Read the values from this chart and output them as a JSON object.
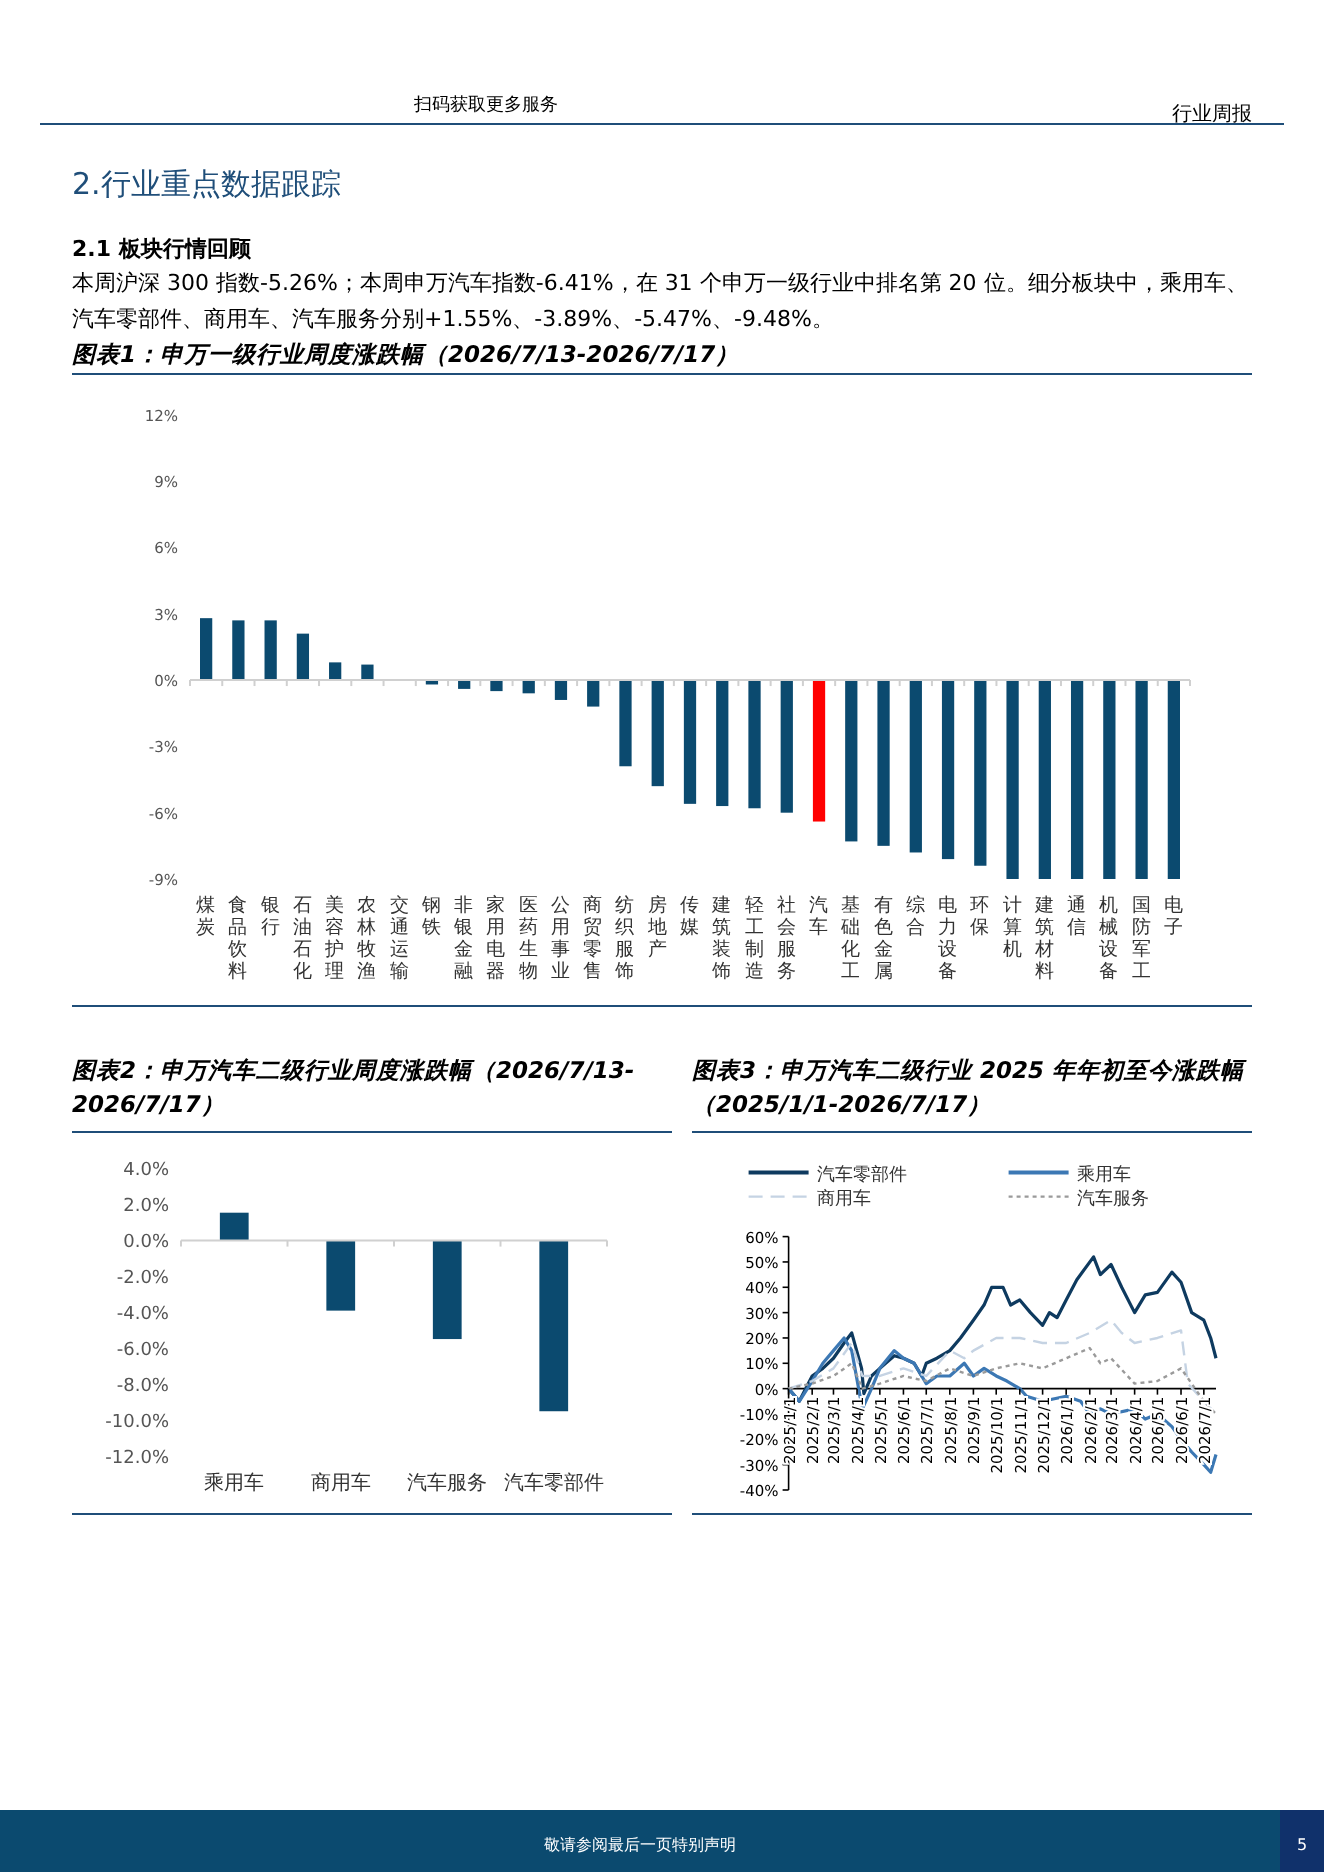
{
  "chart_data": [
    {
      "type": "bar",
      "title": "图表1：申万一级行业周度涨跌幅（2026/7/13-2026/7/17）",
      "annotations": [
        "行业周报",
        "扫码获取更多服务",
        "2.行业重点数据跟踪",
        "2.1 板块行情回顾",
        "本周沪深 300 指数-5.26%；本周申万汽车指数-6.41%，在 31 个申万一级行业中排名第 20 位。细分板块中，乘用车、汽车零部件、商用车、汽车服务分别+1.55%、-3.89%、-5.47%、-9.48%。",
        "敬请参阅最后一页特别声明",
        "5"
      ],
      "categories": [
        "煤炭",
        "食品饮料",
        "银行",
        "石油石化",
        "美容护理",
        "农林牧渔",
        "交通运输",
        "钢铁",
        "非银金融",
        "家用电器",
        "医药生物",
        "公用事业",
        "商贸零售",
        "纺织服饰",
        "房地产",
        "传媒",
        "建筑装饰",
        "轻工制造",
        "社会服务",
        "汽车",
        "基础化工",
        "有色金属",
        "综合",
        "电力设备",
        "环保",
        "计算机",
        "建筑材料",
        "通信",
        "机械设备",
        "国防军工",
        "电子"
      ],
      "values": [
        2.8,
        2.7,
        2.7,
        2.1,
        0.8,
        0.7,
        0,
        -0.2,
        -0.4,
        -0.5,
        -0.6,
        -0.9,
        -1.2,
        -3.9,
        -4.8,
        -5.6,
        -5.7,
        -5.8,
        -6,
        -6.4,
        -7.3,
        -7.5,
        -7.8,
        -8.1,
        -8.4,
        -9,
        -9,
        -9,
        -9,
        -9,
        -9
      ],
      "colors": [
        "#0b4a6f",
        "#0b4a6f",
        "#0b4a6f",
        "#0b4a6f",
        "#0b4a6f",
        "#0b4a6f",
        "#0b4a6f",
        "#0b4a6f",
        "#0b4a6f",
        "#0b4a6f",
        "#0b4a6f",
        "#0b4a6f",
        "#0b4a6f",
        "#0b4a6f",
        "#0b4a6f",
        "#0b4a6f",
        "#0b4a6f",
        "#0b4a6f",
        "#0b4a6f",
        "#ff0000",
        "#0b4a6f",
        "#0b4a6f",
        "#0b4a6f",
        "#0b4a6f",
        "#0b4a6f",
        "#0b4a6f",
        "#0b4a6f",
        "#0b4a6f",
        "#0b4a6f",
        "#0b4a6f",
        "#0b4a6f"
      ],
      "ylim": [
        -9,
        12
      ],
      "yticks": [
        {
          "value": -9,
          "label": "-9%"
        },
        {
          "value": -6,
          "label": "-6%"
        },
        {
          "value": -3,
          "label": "-3%"
        },
        {
          "value": 0,
          "label": "0%"
        },
        {
          "value": 3,
          "label": "3%"
        },
        {
          "value": 6,
          "label": "6%"
        },
        {
          "value": 9,
          "label": "9%"
        },
        {
          "value": 12,
          "label": "12%"
        }
      ]
    },
    {
      "type": "bar",
      "title": "图表2：申万汽车二级行业周度涨跌幅（2026/7/13-2026/7/17）",
      "categories": [
        "乘用车",
        "商用车",
        "汽车服务",
        "汽车零部件"
      ],
      "values": [
        1.55,
        -3.89,
        -5.47,
        -9.48
      ],
      "color": "#0b4a6f",
      "ylim": [
        -12,
        4
      ],
      "yticks": [
        {
          "value": -12,
          "label": "-12.0%"
        },
        {
          "value": -10,
          "label": "-10.0%"
        },
        {
          "value": -8,
          "label": "-8.0%"
        },
        {
          "value": -6,
          "label": "-6.0%"
        },
        {
          "value": -4,
          "label": "-4.0%"
        },
        {
          "value": -2,
          "label": "-2.0%"
        },
        {
          "value": 0,
          "label": "0.0%"
        },
        {
          "value": 2,
          "label": "2.0%"
        },
        {
          "value": 4,
          "label": "4.0%"
        }
      ]
    },
    {
      "type": "line",
      "title": "图表3：申万汽车二级行业 2025 年年初至今涨跌幅（2025/1/1-2026/7/17）",
      "legend": "top",
      "xlim": [
        "2025-01-01",
        "2026-07-17"
      ],
      "xticks": [
        {
          "value": "2025-01-01",
          "label": "2025/1/1"
        },
        {
          "value": "2025-02-01",
          "label": "2025/2/1"
        },
        {
          "value": "2025-03-01",
          "label": "2025/3/1"
        },
        {
          "value": "2025-04-01",
          "label": "2025/4/1"
        },
        {
          "value": "2025-05-01",
          "label": "2025/5/1"
        },
        {
          "value": "2025-06-01",
          "label": "2025/6/1"
        },
        {
          "value": "2025-07-01",
          "label": "2025/7/1"
        },
        {
          "value": "2025-08-01",
          "label": "2025/8/1"
        },
        {
          "value": "2025-09-01",
          "label": "2025/9/1"
        },
        {
          "value": "2025-10-01",
          "label": "2025/10/1"
        },
        {
          "value": "2025-11-01",
          "label": "2025/11/1"
        },
        {
          "value": "2025-12-01",
          "label": "2025/12/1"
        },
        {
          "value": "2026-01-01",
          "label": "2026/1/1"
        },
        {
          "value": "2026-02-01",
          "label": "2026/2/1"
        },
        {
          "value": "2026-03-01",
          "label": "2026/3/1"
        },
        {
          "value": "2026-04-01",
          "label": "2026/4/1"
        },
        {
          "value": "2026-05-01",
          "label": "2026/5/1"
        },
        {
          "value": "2026-06-01",
          "label": "2026/6/1"
        },
        {
          "value": "2026-07-01",
          "label": "2026/7/1"
        }
      ],
      "ylim": [
        -40,
        60
      ],
      "yticks": [
        {
          "value": -40,
          "label": "-40%"
        },
        {
          "value": -30,
          "label": "-30%"
        },
        {
          "value": -20,
          "label": "-20%"
        },
        {
          "value": -10,
          "label": "-10%"
        },
        {
          "value": 0,
          "label": "0%"
        },
        {
          "value": 10,
          "label": "10%"
        },
        {
          "value": 20,
          "label": "20%"
        },
        {
          "value": 30,
          "label": "30%"
        },
        {
          "value": 40,
          "label": "40%"
        },
        {
          "value": 50,
          "label": "50%"
        },
        {
          "value": 60,
          "label": "60%"
        }
      ],
      "series": [
        {
          "name": "汽车零部件",
          "color": "#0e3a5f",
          "line_style": "solid",
          "x": [
            "2025-01-01",
            "2025-01-15",
            "2025-02-01",
            "2025-02-15",
            "2025-03-01",
            "2025-03-15",
            "2025-03-25",
            "2025-04-07",
            "2025-04-10",
            "2025-04-20",
            "2025-05-01",
            "2025-05-20",
            "2025-06-01",
            "2025-06-15",
            "2025-06-25",
            "2025-07-01",
            "2025-07-15",
            "2025-08-01",
            "2025-08-15",
            "2025-09-01",
            "2025-09-15",
            "2025-09-25",
            "2025-10-10",
            "2025-10-20",
            "2025-11-01",
            "2025-11-15",
            "2025-12-01",
            "2025-12-10",
            "2025-12-20",
            "2026-01-01",
            "2026-01-15",
            "2026-02-06",
            "2026-02-15",
            "2026-03-01",
            "2026-03-15",
            "2026-04-01",
            "2026-04-15",
            "2026-05-01",
            "2026-05-20",
            "2026-06-01",
            "2026-06-15",
            "2026-07-01",
            "2026-07-10",
            "2026-07-17"
          ],
          "values": [
            0,
            -5,
            5,
            8,
            12,
            18,
            22,
            8,
            -2,
            5,
            8,
            13,
            12,
            10,
            5,
            10,
            12,
            15,
            20,
            27,
            33,
            40,
            40,
            33,
            35,
            30,
            25,
            30,
            28,
            35,
            43,
            52,
            45,
            49,
            40,
            30,
            37,
            38,
            46,
            42,
            30,
            27,
            20,
            12
          ]
        },
        {
          "name": "乘用车",
          "color": "#3c78b4",
          "line_style": "solid",
          "x": [
            "2025-01-01",
            "2025-01-15",
            "2025-02-01",
            "2025-02-15",
            "2025-03-01",
            "2025-03-15",
            "2025-03-25",
            "2025-04-08",
            "2025-04-20",
            "2025-05-01",
            "2025-05-20",
            "2025-06-01",
            "2025-06-15",
            "2025-07-01",
            "2025-07-15",
            "2025-08-01",
            "2025-08-20",
            "2025-09-01",
            "2025-09-15",
            "2025-10-01",
            "2025-10-15",
            "2025-11-01",
            "2025-11-10",
            "2025-12-01",
            "2026-01-01",
            "2026-01-20",
            "2026-02-01",
            "2026-02-15",
            "2026-03-01",
            "2026-04-01",
            "2026-04-15",
            "2026-05-01",
            "2026-05-20",
            "2026-06-01",
            "2026-06-15",
            "2026-07-01",
            "2026-07-10",
            "2026-07-17"
          ],
          "values": [
            0,
            -5,
            3,
            10,
            15,
            20,
            15,
            -8,
            0,
            8,
            15,
            12,
            10,
            2,
            5,
            5,
            10,
            5,
            8,
            5,
            3,
            0,
            -3,
            -5,
            -3,
            -5,
            -10,
            -8,
            -10,
            -8,
            -12,
            -10,
            -15,
            -20,
            -25,
            -30,
            -33,
            -26
          ]
        },
        {
          "name": "商用车",
          "color": "#c5d3e3",
          "line_style": "dashed",
          "x": [
            "2025-01-01",
            "2025-02-01",
            "2025-03-01",
            "2025-03-25",
            "2025-04-08",
            "2025-05-01",
            "2025-06-01",
            "2025-07-01",
            "2025-08-01",
            "2025-08-20",
            "2025-09-01",
            "2025-10-01",
            "2025-11-01",
            "2025-12-01",
            "2026-01-01",
            "2026-02-01",
            "2026-03-01",
            "2026-03-15",
            "2026-04-01",
            "2026-05-01",
            "2026-06-01",
            "2026-06-10",
            "2026-07-01",
            "2026-07-17"
          ],
          "values": [
            0,
            3,
            8,
            18,
            5,
            5,
            8,
            5,
            15,
            12,
            15,
            20,
            20,
            18,
            18,
            22,
            27,
            22,
            18,
            20,
            23,
            2,
            -5,
            -10
          ]
        },
        {
          "name": "汽车服务",
          "color": "#9a9a9a",
          "line_style": "dotted",
          "x": [
            "2025-01-01",
            "2025-02-01",
            "2025-03-01",
            "2025-03-25",
            "2025-04-08",
            "2025-05-01",
            "2025-06-01",
            "2025-07-01",
            "2025-08-01",
            "2025-09-01",
            "2025-10-01",
            "2025-11-01",
            "2025-12-01",
            "2026-01-01",
            "2026-02-01",
            "2026-02-15",
            "2026-03-01",
            "2026-04-01",
            "2026-05-01",
            "2026-06-01",
            "2026-06-15",
            "2026-07-01",
            "2026-07-17"
          ],
          "values": [
            0,
            2,
            5,
            10,
            0,
            2,
            5,
            3,
            8,
            5,
            8,
            10,
            8,
            12,
            16,
            10,
            12,
            2,
            3,
            8,
            2,
            -5,
            -10
          ]
        }
      ]
    }
  ]
}
